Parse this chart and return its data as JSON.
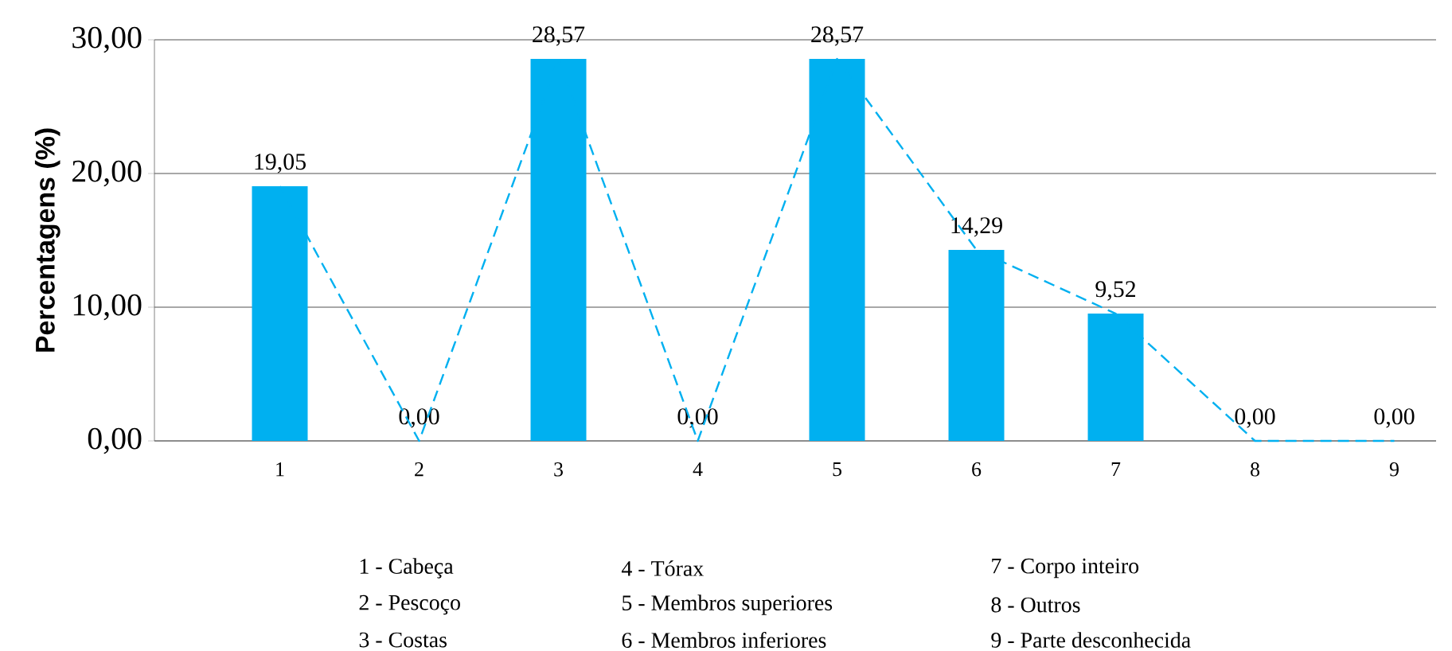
{
  "chart_data": {
    "type": "bar",
    "ylabel": "Percentagens (%)",
    "categories": [
      "1",
      "2",
      "3",
      "4",
      "5",
      "6",
      "7",
      "8",
      "9"
    ],
    "series": [
      {
        "color": "#00b0f0",
        "values": [
          19.05,
          0,
          28.57,
          0,
          28.57,
          14.29,
          9.52,
          0,
          0
        ],
        "value_labels": [
          "19,05",
          "0,00",
          "28,57",
          "0,00",
          "28,57",
          "14,29",
          "9,52",
          "0,00",
          "0,00"
        ]
      },
      {
        "type": "line",
        "color": "#00b0f0",
        "line_style": "dashed",
        "values": [
          19.05,
          0,
          28.57,
          0,
          28.57,
          14.29,
          9.52,
          0,
          0
        ]
      }
    ],
    "ylim": [
      0,
      30
    ],
    "yticks": [
      {
        "value": 0,
        "label": "0,00"
      },
      {
        "value": 10,
        "label": "10,00"
      },
      {
        "value": 20,
        "label": "20,00"
      },
      {
        "value": 30,
        "label": "30,00"
      }
    ],
    "grid": "y",
    "annotations": [
      "1 - Cabeça",
      "2 - Pescoço",
      "3 - Costas",
      "4 - Tórax",
      "5 - Membros superiores",
      "6 - Membros inferiores",
      "7 - Corpo inteiro",
      "8 - Outros",
      "9 - Parte desconhecida"
    ]
  }
}
